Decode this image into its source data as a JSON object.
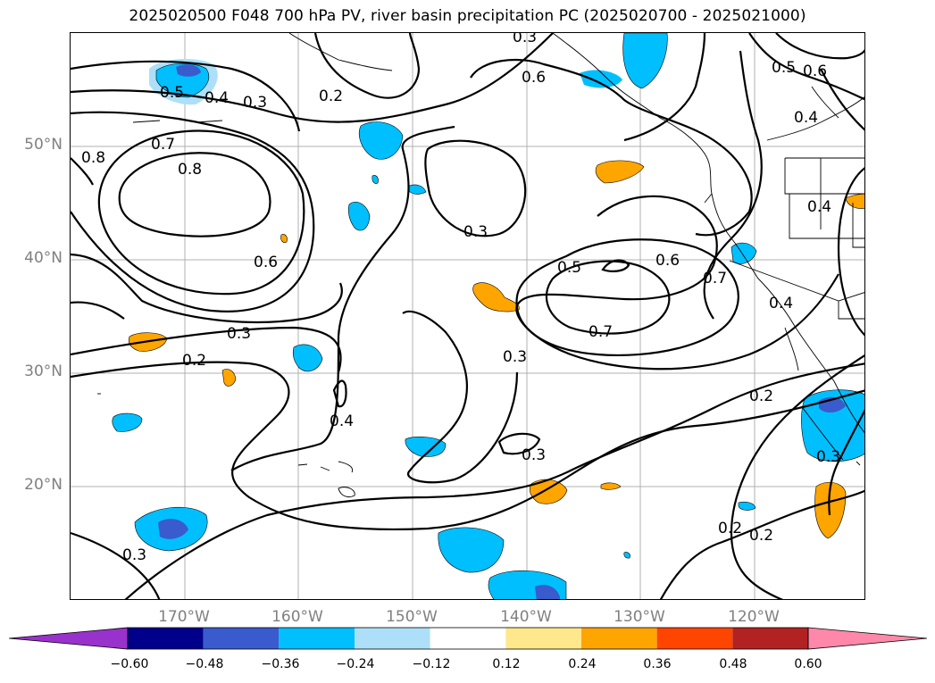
{
  "title": "2025020500 F048 700 hPa PV, river basin precipitation PC (2025020700 - 2025021000)",
  "lat_labels": [
    "50°N",
    "40°N",
    "30°N",
    "20°N"
  ],
  "lon_labels": [
    "170°W",
    "160°W",
    "150°W",
    "140°W",
    "130°W",
    "120°W"
  ],
  "contour_labels": [
    "0.5",
    "0.4",
    "0.3",
    "0.2",
    "0.6",
    "0.5",
    "0.6",
    "0.8",
    "0.7",
    "0.8",
    "0.4",
    "0.6",
    "0.3",
    "0.5",
    "0.6",
    "0.7",
    "0.4",
    "0.4",
    "0.7",
    "0.3",
    "0.2",
    "0.3",
    "0.4",
    "0.2",
    "0.3",
    "0.3",
    "0.2",
    "0.2",
    "0.3",
    "0.3"
  ],
  "colorbar": {
    "ticks": [
      "−0.60",
      "−0.48",
      "−0.36",
      "−0.24",
      "−0.12",
      "0.12",
      "0.24",
      "0.36",
      "0.48",
      "0.60"
    ],
    "colors": [
      "#9932cc",
      "#00008b",
      "#3a5bcd",
      "#00bfff",
      "#ade0f8",
      "#ffffff",
      "#ffe88c",
      "#ffa500",
      "#ff4500",
      "#b22222",
      "#ff88aa"
    ]
  }
}
